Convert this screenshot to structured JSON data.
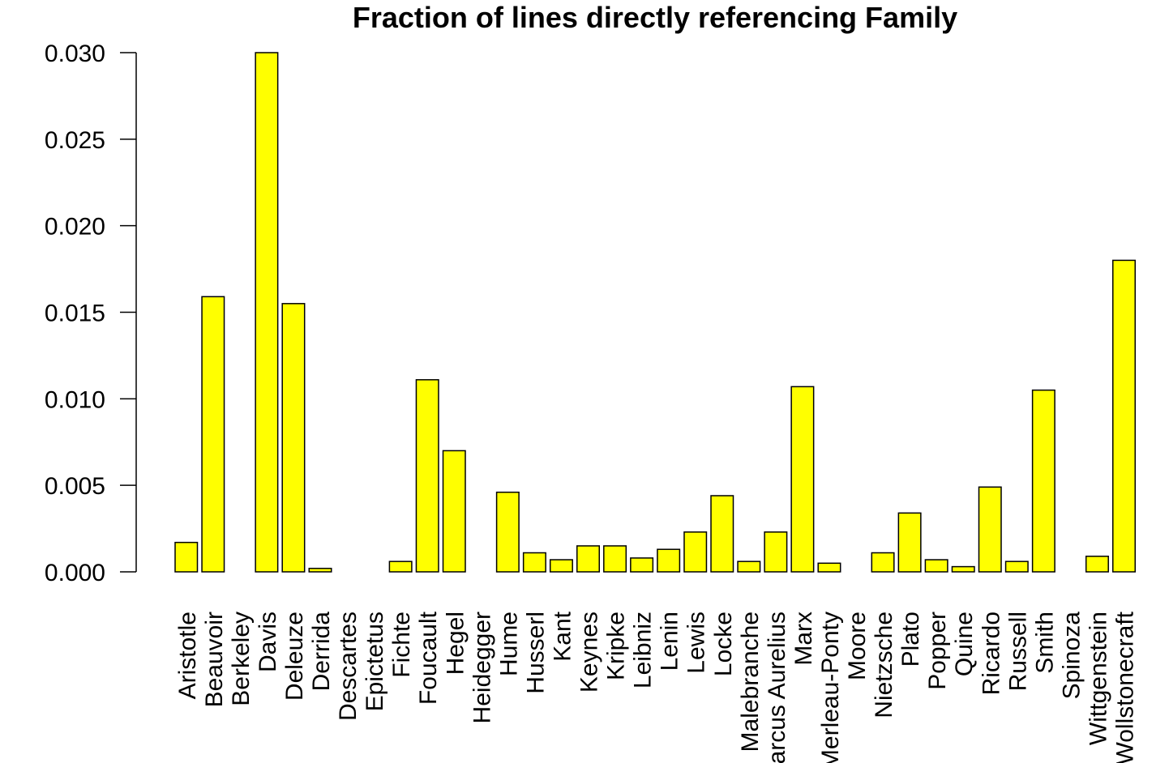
{
  "chart_data": {
    "type": "bar",
    "title": "Fraction of lines directly referencing Family",
    "xlabel": "",
    "ylabel": "",
    "ylim": [
      0,
      0.03
    ],
    "y_ticks": [
      "0.000",
      "0.005",
      "0.010",
      "0.015",
      "0.020",
      "0.025",
      "0.030"
    ],
    "grid": false,
    "bar_color": "#ffff00",
    "categories": [
      "Aristotle",
      "Beauvoir",
      "Berkeley",
      "Davis",
      "Deleuze",
      "Derrida",
      "Descartes",
      "Epictetus",
      "Fichte",
      "Foucault",
      "Hegel",
      "Heidegger",
      "Hume",
      "Husserl",
      "Kant",
      "Keynes",
      "Kripke",
      "Leibniz",
      "Lenin",
      "Lewis",
      "Locke",
      "Malebranche",
      "Marcus Aurelius",
      "Marx",
      "Merleau-Ponty",
      "Moore",
      "Nietzsche",
      "Plato",
      "Popper",
      "Quine",
      "Ricardo",
      "Russell",
      "Smith",
      "Spinoza",
      "Wittgenstein",
      "Wollstonecraft"
    ],
    "values": [
      0.0017,
      0.0159,
      0.0,
      0.03,
      0.0155,
      0.0002,
      0.0,
      0.0,
      0.0006,
      0.0111,
      0.007,
      0.0,
      0.0046,
      0.0011,
      0.0007,
      0.0015,
      0.0015,
      0.0008,
      0.0013,
      0.0023,
      0.0044,
      0.0006,
      0.0023,
      0.0107,
      0.0005,
      0.0,
      0.0011,
      0.0034,
      0.0007,
      0.0003,
      0.0049,
      0.0006,
      0.0105,
      0.0,
      0.0009,
      0.018
    ]
  }
}
